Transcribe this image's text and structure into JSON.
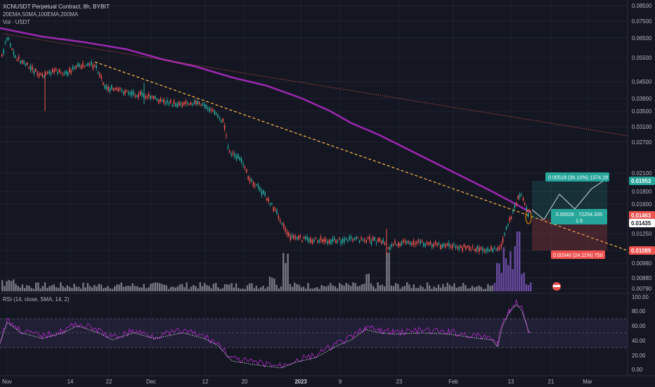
{
  "header": {
    "symbol_line": "XCNUSDT Perpetual Contract, 8h, BYBIT",
    "indicators_line": "20EMA,50MA,100EMA,200MA",
    "volume_line": "Vol · USDT",
    "rsi_line": "RSI (14, close, SMA, 14, 2)"
  },
  "price_axis": {
    "ticks": [
      "0.08500",
      "0.07500",
      "0.06500",
      "0.05500",
      "0.04500",
      "0.03900",
      "0.03500",
      "0.03100",
      "0.02700",
      "0.02100",
      "0.01800",
      "0.01600",
      "0.01250",
      "0.01100",
      "0.00980",
      "0.00880",
      "0.00790"
    ],
    "badges": [
      {
        "text": "0.01953",
        "color": "#26a69a"
      },
      {
        "text": "0.01463",
        "color": "#ef5350"
      },
      {
        "text": "0.01435",
        "color": "#ffffff"
      },
      {
        "text": "0.01089",
        "color": "#ef5350"
      }
    ]
  },
  "rsi_axis": {
    "ticks": [
      "100.00",
      "80.00",
      "60.00",
      "40.00",
      "20.00",
      "0.00"
    ]
  },
  "time_axis": {
    "ticks": [
      "Nov",
      "14",
      "22",
      "Dec",
      "12",
      "20",
      "2023",
      "9",
      "23",
      "Feb",
      "13",
      "21",
      "Mar"
    ]
  },
  "position_tool": {
    "target_label": "0.00518 (36.10%) 1374.28",
    "center_line1": "0.00028 · 72254.335",
    "center_line2": "1.5",
    "stop_label": "0.00346 (24.11%) 750",
    "entry": 0.01435,
    "target": 0.01953,
    "stop": 0.01089
  },
  "chart_data": {
    "type": "candlestick",
    "symbol": "XCNUSDT Perpetual Contract",
    "interval": "8h",
    "exchange": "BYBIT",
    "x_range": [
      "Nov",
      "Mar"
    ],
    "price_trend": {
      "x": [
        "Nov",
        "14",
        "22",
        "Dec",
        "12",
        "20",
        "2023",
        "9",
        "23",
        "Feb",
        "13"
      ],
      "close": [
        0.064,
        0.053,
        0.052,
        0.044,
        0.039,
        0.0195,
        0.0118,
        0.0117,
        0.0115,
        0.0112,
        0.0155
      ]
    },
    "indicators": [
      "20EMA",
      "50MA",
      "100EMA",
      "200MA"
    ],
    "rsi": {
      "levels": [
        70,
        50,
        30
      ],
      "range": [
        0,
        100
      ]
    },
    "colors": {
      "up": "#26a69a",
      "down": "#ef5350",
      "ma": "#9c27b0",
      "background": "#141722"
    }
  }
}
